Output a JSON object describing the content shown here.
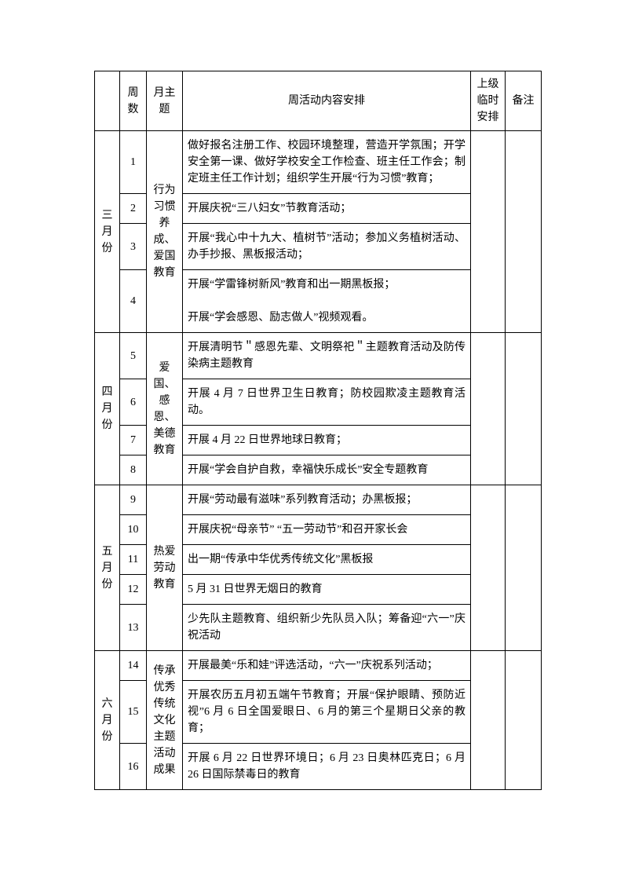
{
  "headers": {
    "month": "",
    "week": "周数",
    "theme": "月主题",
    "content": "周活动内容安排",
    "superior": "上级临时安排",
    "note": "备注"
  },
  "months": [
    {
      "label": "三月份",
      "theme": "行为习惯养成、爱国教育",
      "rows": [
        {
          "week": "1",
          "content": "做好报名注册工作、校园环境整理，营造开学氛围；开学安全第一课、做好学校安全工作检查、班主任工作会；制定班主任工作计划；组织学生开展“行为习惯”教育；"
        },
        {
          "week": "2",
          "content": "开展庆祝“三八妇女”节教育活动；"
        },
        {
          "week": "3",
          "content": "开展“我心中十九大、植树节”活动；参加义务植树活动、办手抄报、黑板报活动；"
        },
        {
          "week": "4",
          "content": "开展“学雷锋树新风”教育和出一期黑板报；\n开展“学会感恩、励志做人”视频观看。"
        }
      ]
    },
    {
      "label": "四月份",
      "theme": "爱国、感恩、美德教育",
      "rows": [
        {
          "week": "5",
          "content": "开展清明节＂感恩先辈、文明祭祀＂主题教育活动及防传染病主题教育"
        },
        {
          "week": "6",
          "content": "开展 4 月 7 日世界卫生日教育；防校园欺凌主题教育活动。"
        },
        {
          "week": "7",
          "content": "开展 4 月 22 日世界地球日教育；"
        },
        {
          "week": "8",
          "content": "开展“学会自护自救，幸福快乐成长”安全专题教育"
        }
      ]
    },
    {
      "label": "五月份",
      "theme": "热爱劳动教育",
      "rows": [
        {
          "week": "9",
          "content": "开展“劳动最有滋味”系列教育活动；办黑板报；"
        },
        {
          "week": "10",
          "content": "开展庆祝“母亲节”  “五一劳动节”和召开家长会"
        },
        {
          "week": "11",
          "content": "出一期“传承中华优秀传统文化”黑板报"
        },
        {
          "week": "12",
          "content": "5 月 31 日世界无烟日的教育"
        },
        {
          "week": "13",
          "content": "少先队主题教育、组织新少先队员入队；筹备迎“六一”庆祝活动"
        }
      ]
    },
    {
      "label": "六月份",
      "theme": "传承优秀传统文化主题活动成果",
      "rows": [
        {
          "week": "14",
          "content": "开展最美“乐和娃”评选活动，“六一”庆祝系列活动；"
        },
        {
          "week": "15",
          "content": "开展农历五月初五端午节教育；开展“保护眼睛、预防近视”6 月 6 日全国爱眼日、6 月的第三个星期日父亲的教育；"
        },
        {
          "week": "16",
          "content": "开展 6 月 22 日世界环境日；6 月 23 日奥林匹克日；6 月 26 日国际禁毒日的教育"
        }
      ]
    }
  ]
}
